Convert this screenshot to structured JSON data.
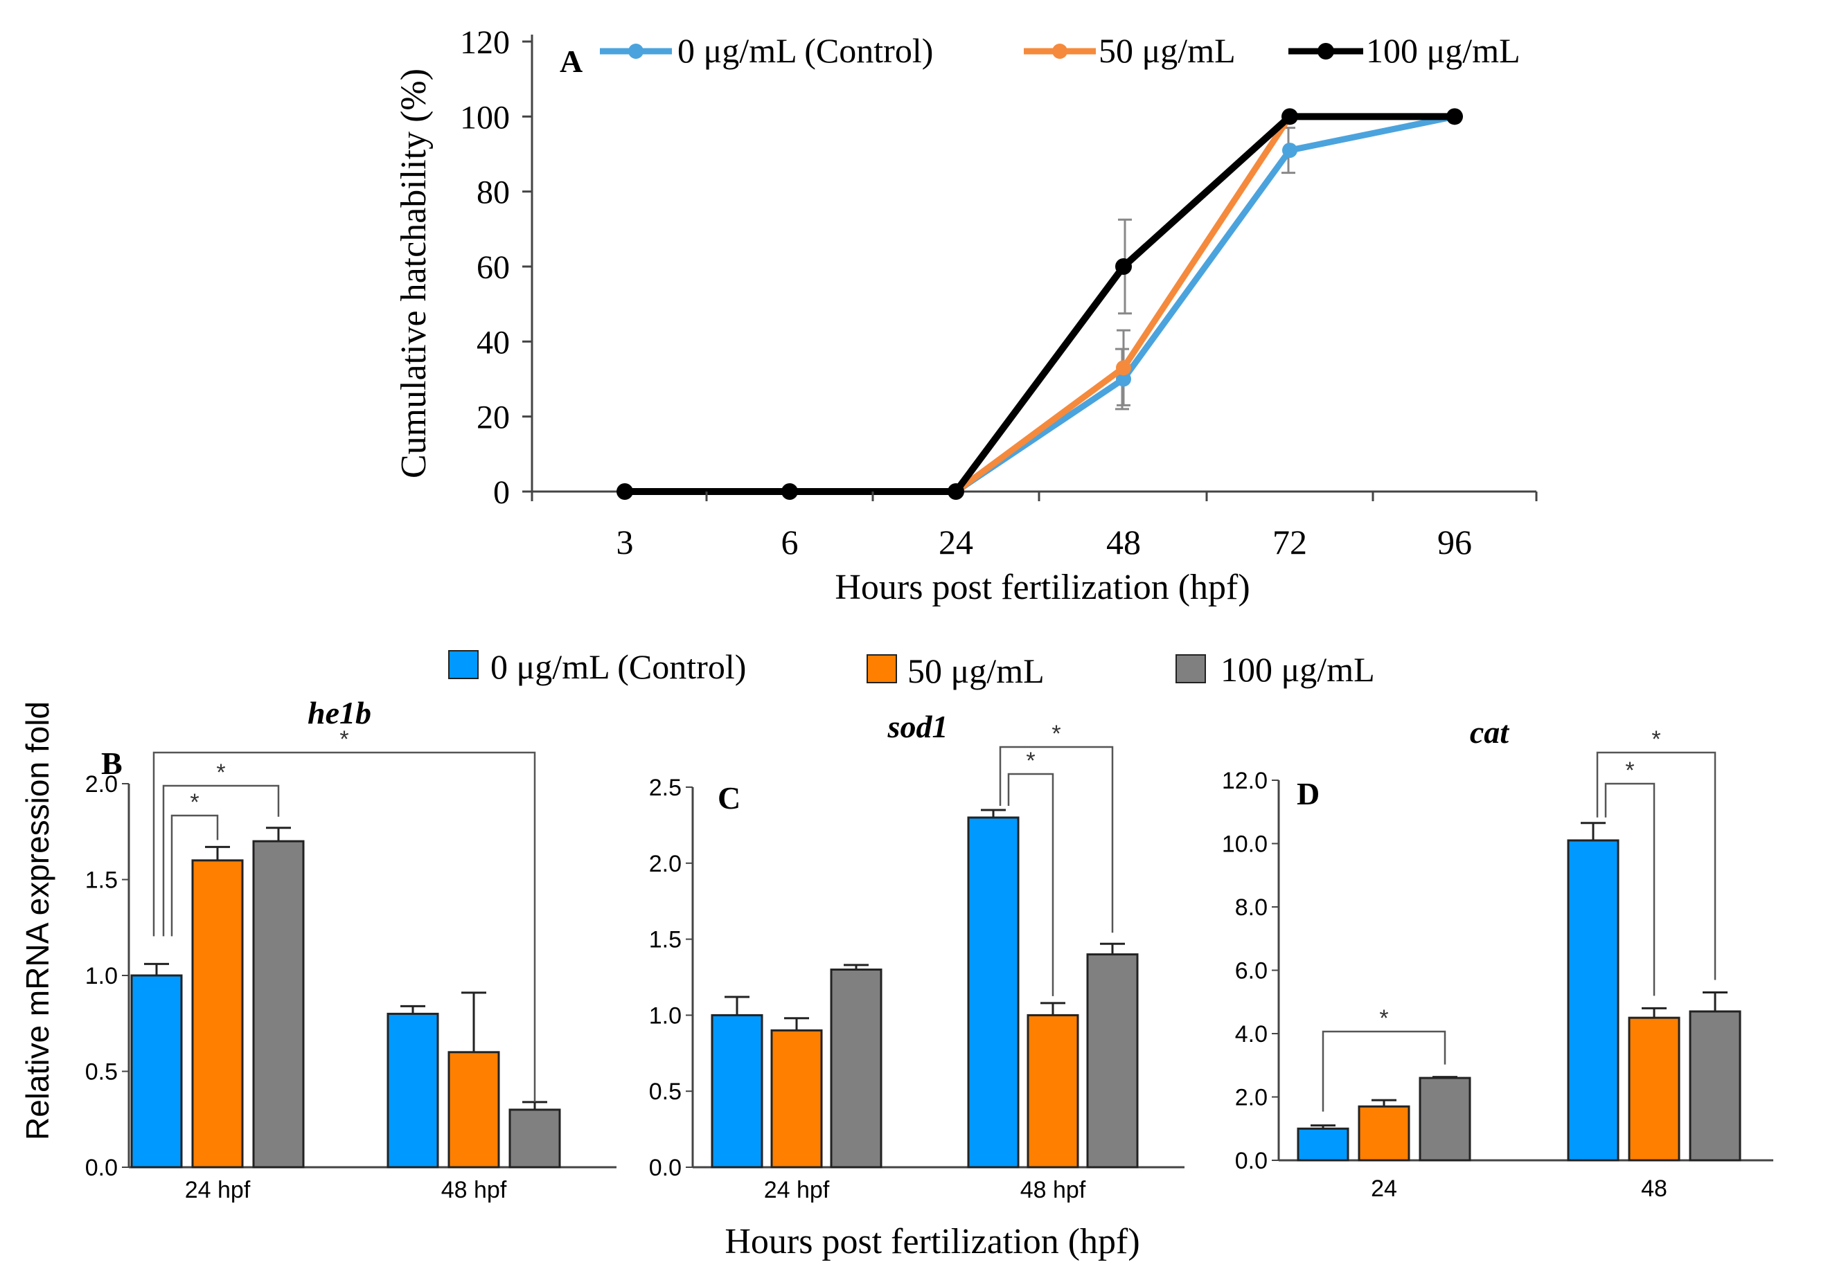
{
  "colors": {
    "control_line": "#4ba3dd",
    "mid_line": "#f58a3c",
    "high_line": "#000000",
    "control_bar": "#0099ff",
    "mid_bar": "#ff7f00",
    "high_bar": "#808080",
    "bar_stroke": "#222222",
    "error": "#888888",
    "axis": "#444444"
  },
  "panels": {
    "a_label": "A",
    "b_label": "B",
    "c_label": "C",
    "d_label": "D"
  },
  "legend_bars": {
    "control": "0 μg/mL  (Control)",
    "mid": "50 μg/mL",
    "high": "100 μg/mL"
  },
  "shared_xlabel": "Hours post fertilization  (hpf)",
  "shared_ylabel": "Relative  mRNA expression fold",
  "sig_marker": "*",
  "chart_data": [
    {
      "id": "A",
      "type": "line",
      "title": "",
      "xlabel": "Hours post fertilization  (hpf)",
      "ylabel": "Cumulative  hatchability  (%)",
      "categories": [
        "3",
        "6",
        "24",
        "48",
        "72",
        "96"
      ],
      "ylim": [
        0,
        120
      ],
      "yticks": [
        "0",
        "20",
        "40",
        "60",
        "80",
        "100",
        "120"
      ],
      "legend_position": "top",
      "series": [
        {
          "name": "0 μg/mL  (Control)",
          "color_key": "control_line",
          "values": [
            0,
            0,
            0,
            30,
            91,
            100
          ],
          "errors": [
            0,
            0,
            0,
            8,
            6,
            0
          ]
        },
        {
          "name": "50 μg/mL",
          "color_key": "mid_line",
          "values": [
            0,
            0,
            0,
            33,
            100,
            100
          ],
          "errors": [
            0,
            0,
            0,
            10,
            0,
            0
          ]
        },
        {
          "name": "100 μg/mL",
          "color_key": "high_line",
          "values": [
            0,
            0,
            0,
            60,
            100,
            100
          ],
          "errors": [
            0,
            0,
            0,
            12.5,
            0,
            0
          ]
        }
      ]
    },
    {
      "id": "B",
      "type": "bar",
      "title": "he1b",
      "categories": [
        "24 hpf",
        "48 hpf"
      ],
      "ylim": [
        0,
        2.0
      ],
      "yticks": [
        "0.0",
        "0.5",
        "1.0",
        "1.5",
        "2.0"
      ],
      "series": [
        {
          "name": "0 μg/mL  (Control)",
          "color_key": "control_bar",
          "values": [
            1.0,
            0.8
          ],
          "errors": [
            0.06,
            0.04
          ]
        },
        {
          "name": "50 μg/mL",
          "color_key": "mid_bar",
          "values": [
            1.6,
            0.6
          ],
          "errors": [
            0.07,
            0.31
          ]
        },
        {
          "name": "100 μg/mL",
          "color_key": "high_bar",
          "values": [
            1.7,
            0.3
          ],
          "errors": [
            0.07,
            0.04
          ]
        }
      ],
      "significance": [
        {
          "from": [
            0,
            0
          ],
          "to": [
            0,
            1
          ],
          "marker": "*"
        },
        {
          "from": [
            0,
            0
          ],
          "to": [
            0,
            2
          ],
          "marker": "*"
        },
        {
          "from": [
            0,
            0
          ],
          "to": [
            1,
            2
          ],
          "marker": "*"
        }
      ]
    },
    {
      "id": "C",
      "type": "bar",
      "title": "sod1",
      "categories": [
        "24 hpf",
        "48 hpf"
      ],
      "ylim": [
        0,
        2.5
      ],
      "yticks": [
        "0.0",
        "0.5",
        "1.0",
        "1.5",
        "2.0",
        "2.5"
      ],
      "series": [
        {
          "name": "0 μg/mL  (Control)",
          "color_key": "control_bar",
          "values": [
            1.0,
            2.3
          ],
          "errors": [
            0.12,
            0.05
          ]
        },
        {
          "name": "50 μg/mL",
          "color_key": "mid_bar",
          "values": [
            0.9,
            1.0
          ],
          "errors": [
            0.08,
            0.08
          ]
        },
        {
          "name": "100 μg/mL",
          "color_key": "high_bar",
          "values": [
            1.3,
            1.4
          ],
          "errors": [
            0.03,
            0.07
          ]
        }
      ],
      "significance": [
        {
          "from": [
            1,
            0
          ],
          "to": [
            1,
            1
          ],
          "marker": "*"
        },
        {
          "from": [
            1,
            0
          ],
          "to": [
            1,
            2
          ],
          "marker": "*"
        }
      ]
    },
    {
      "id": "D",
      "type": "bar",
      "title": "cat",
      "categories": [
        "24",
        "48"
      ],
      "ylim": [
        0,
        12
      ],
      "yticks": [
        "0.0",
        "2.0",
        "4.0",
        "6.0",
        "8.0",
        "10.0",
        "12.0"
      ],
      "series": [
        {
          "name": "0 μg/mL  (Control)",
          "color_key": "control_bar",
          "values": [
            1.0,
            10.1
          ],
          "errors": [
            0.1,
            0.55
          ]
        },
        {
          "name": "50 μg/mL",
          "color_key": "mid_bar",
          "values": [
            1.7,
            4.5
          ],
          "errors": [
            0.2,
            0.3
          ]
        },
        {
          "name": "100 μg/mL",
          "color_key": "high_bar",
          "values": [
            2.6,
            4.7
          ],
          "errors": [
            0.03,
            0.6
          ]
        }
      ],
      "significance": [
        {
          "from": [
            0,
            0
          ],
          "to": [
            0,
            2
          ],
          "marker": "*"
        },
        {
          "from": [
            1,
            0
          ],
          "to": [
            1,
            1
          ],
          "marker": "*"
        },
        {
          "from": [
            1,
            0
          ],
          "to": [
            1,
            2
          ],
          "marker": "*"
        }
      ]
    }
  ]
}
